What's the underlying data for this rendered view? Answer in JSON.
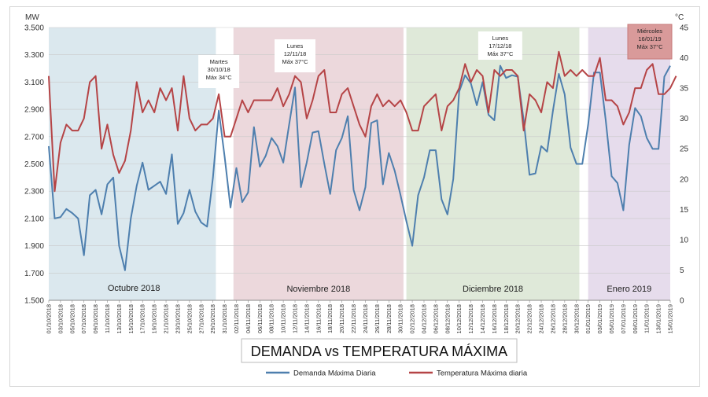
{
  "chart_data": {
    "type": "line",
    "title": "DEMANDA vs TEMPERATURA MÁXIMA",
    "y_left": {
      "label": "MW",
      "ylim": [
        1500,
        3500
      ],
      "ticks": [
        "1.500",
        "1.700",
        "1.900",
        "2.100",
        "2.300",
        "2.500",
        "2.700",
        "2.900",
        "3.100",
        "3.300",
        "3.500"
      ]
    },
    "y_right": {
      "label": "°C",
      "ylim": [
        0,
        45
      ],
      "ticks": [
        "0",
        "5",
        "10",
        "15",
        "20",
        "25",
        "30",
        "35",
        "40",
        "45"
      ]
    },
    "x_tick_labels": [
      "01/10/2018",
      "03/10/2018",
      "05/10/2018",
      "07/10/2018",
      "09/10/2018",
      "11/10/2018",
      "13/10/2018",
      "15/10/2018",
      "17/10/2018",
      "19/10/2018",
      "21/10/2018",
      "23/10/2018",
      "25/10/2018",
      "27/10/2018",
      "29/10/2018",
      "31/10/2018",
      "02/11/2018",
      "04/11/2018",
      "06/11/2018",
      "08/11/2018",
      "10/11/2018",
      "12/11/2018",
      "14/11/2018",
      "16/11/2018",
      "18/11/2018",
      "20/11/2018",
      "22/11/2018",
      "24/11/2018",
      "26/11/2018",
      "28/11/2018",
      "30/11/2018",
      "02/12/2018",
      "04/12/2018",
      "06/12/2018",
      "08/12/2018",
      "10/12/2018",
      "12/12/2018",
      "14/12/2018",
      "16/12/2018",
      "18/12/2018",
      "20/12/2018",
      "22/12/2018",
      "24/12/2018",
      "26/12/2018",
      "28/12/2018",
      "30/12/2018",
      "01/01/2019",
      "03/01/2019",
      "05/01/2019",
      "07/01/2019",
      "09/01/2019",
      "11/01/2019",
      "13/01/2019",
      "15/01/2019"
    ],
    "months": [
      {
        "label": "Octubre  2018",
        "start": 0,
        "end": 28.5,
        "color": "#dbe8ee"
      },
      {
        "label": "Noviembre  2018",
        "start": 31.5,
        "end": 60.5,
        "color": "#ecd8dc"
      },
      {
        "label": "Diciembre 2018",
        "start": 61,
        "end": 90.5,
        "color": "#dfe9d9"
      },
      {
        "label": "Enero 2019",
        "start": 92,
        "end": 106,
        "color": "#e6dcec"
      }
    ],
    "series": [
      {
        "name": "Demanda Máxima Diaria",
        "axis": "left",
        "color": "#4e7fae",
        "values": [
          2630,
          2100,
          2110,
          2170,
          2140,
          2100,
          1830,
          2270,
          2310,
          2130,
          2350,
          2400,
          1900,
          1720,
          2100,
          2340,
          2510,
          2310,
          2340,
          2370,
          2280,
          2570,
          2060,
          2140,
          2310,
          2150,
          2070,
          2040,
          2400,
          2890,
          2550,
          2180,
          2470,
          2220,
          2290,
          2770,
          2480,
          2560,
          2690,
          2630,
          2510,
          2790,
          3060,
          2330,
          2510,
          2730,
          2740,
          2500,
          2280,
          2600,
          2690,
          2850,
          2310,
          2160,
          2330,
          2800,
          2820,
          2350,
          2580,
          2450,
          2270,
          2080,
          1900,
          2270,
          2400,
          2600,
          2600,
          2240,
          2130,
          2390,
          3030,
          3150,
          3090,
          2930,
          3100,
          2860,
          2820,
          3220,
          3130,
          3150,
          3140,
          2820,
          2420,
          2430,
          2630,
          2590,
          2890,
          3160,
          3010,
          2620,
          2500,
          2500,
          2790,
          3170,
          3170,
          2820,
          2410,
          2360,
          2160,
          2640,
          2910,
          2850,
          2690,
          2610,
          2610,
          3140,
          3220
        ]
      },
      {
        "name": "Temperatura Máxima diaria",
        "axis": "right",
        "color": "#b54446",
        "values": [
          37,
          18,
          26,
          29,
          28,
          28,
          30,
          36,
          37,
          25,
          29,
          24,
          21,
          23,
          28,
          36,
          31,
          33,
          31,
          35,
          33,
          35,
          28,
          37,
          30,
          28,
          29,
          29,
          30,
          34,
          27,
          27,
          30,
          33,
          31,
          33,
          33,
          33,
          33,
          35,
          32,
          34,
          37,
          36,
          30,
          33,
          37,
          38,
          31,
          31,
          34,
          35,
          32,
          29,
          27,
          32,
          34,
          32,
          33,
          32,
          33,
          31,
          28,
          28,
          32,
          33,
          34,
          28,
          32,
          33,
          35,
          39,
          36,
          38,
          37,
          31,
          38,
          37,
          38,
          38,
          37,
          28,
          34,
          33,
          31,
          36,
          35,
          41,
          37,
          38,
          37,
          38,
          37,
          37,
          40,
          33,
          33,
          32,
          29,
          31,
          35,
          35,
          38,
          39,
          34,
          34,
          35,
          37
        ]
      }
    ],
    "annotations": [
      {
        "lines": [
          "Martes",
          "30/10/18",
          "Máx 34°C"
        ],
        "day": 29
      },
      {
        "lines": [
          "Lunes",
          "12/11/18",
          "Máx 37°C"
        ],
        "day": 42
      },
      {
        "lines": [
          "Lunes",
          "17/12/18",
          "Máx 37°C"
        ],
        "day": 77
      },
      {
        "lines": [
          "Miércoles",
          "16/01/19",
          "Máx 37°C"
        ],
        "day": 107
      }
    ],
    "legend": {
      "placement": "bottom",
      "items": [
        "Demanda Máxima Diaria",
        "Temperatura Máxima diaria"
      ]
    }
  }
}
